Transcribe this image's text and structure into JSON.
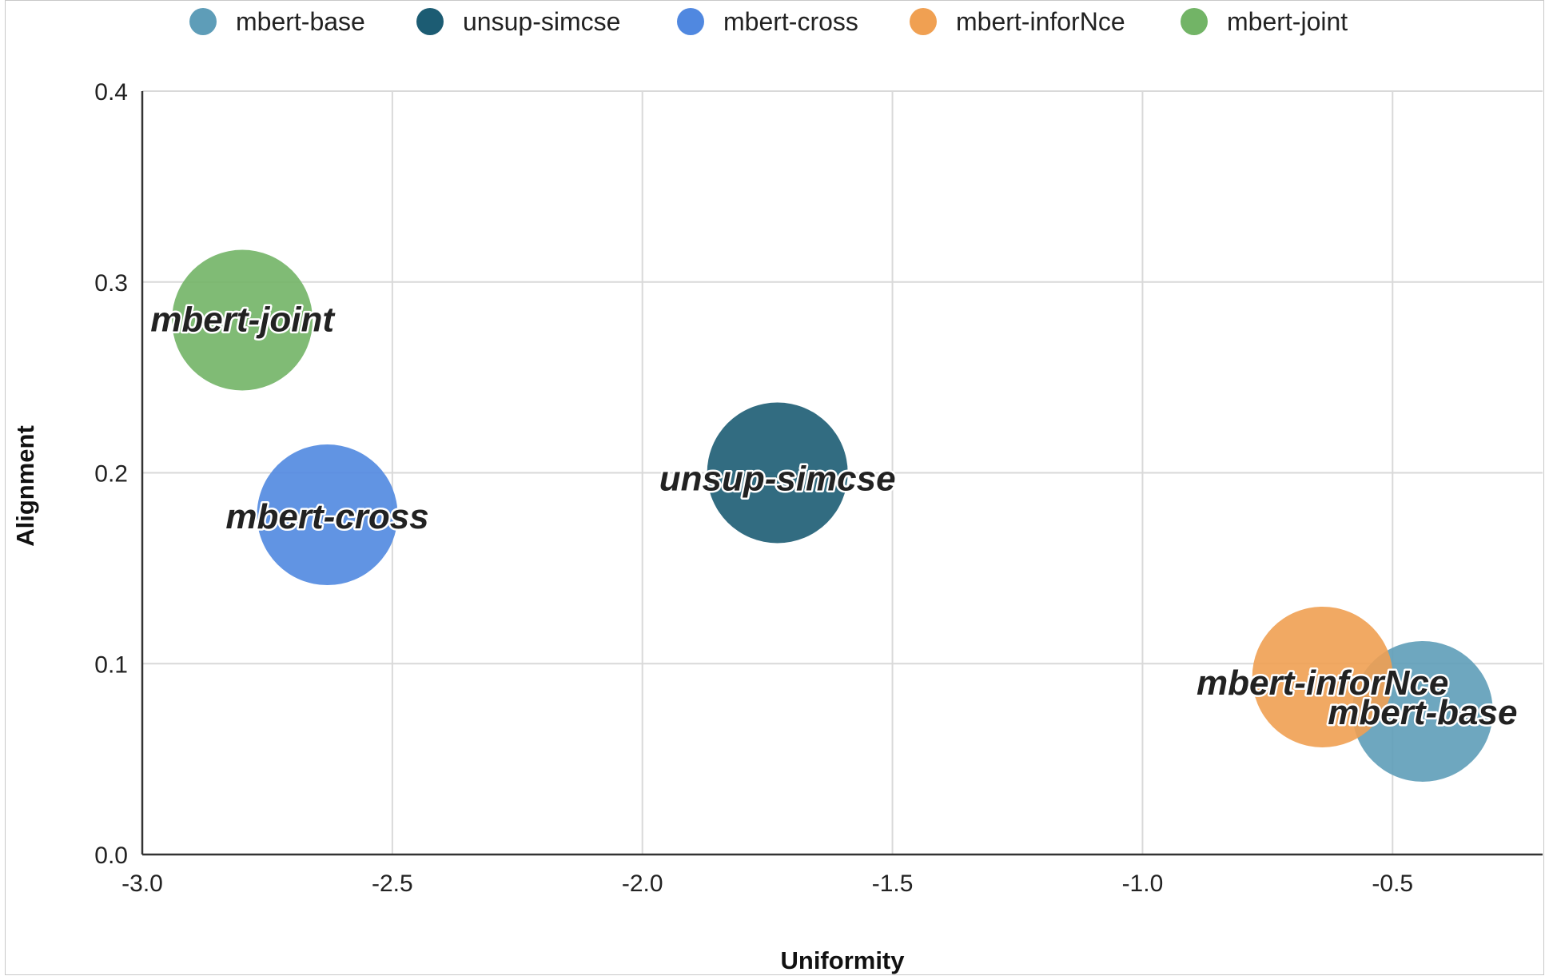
{
  "chart_data": {
    "type": "scatter",
    "xlabel": "Uniformity",
    "ylabel": "Alignment",
    "xlim": [
      -3.0,
      -0.2
    ],
    "ylim": [
      0.0,
      0.4
    ],
    "x_ticks": [
      -3.0,
      -2.5,
      -2.0,
      -1.5,
      -1.0,
      -0.5
    ],
    "x_tick_labels": [
      "-3.0",
      "-2.5",
      "-2.0",
      "-1.5",
      "-1.0",
      "-0.5"
    ],
    "y_ticks": [
      0.0,
      0.1,
      0.2,
      0.3,
      0.4
    ],
    "y_tick_labels": [
      "0.0",
      "0.1",
      "0.2",
      "0.3",
      "0.4"
    ],
    "grid": true,
    "legend_position": "top",
    "series": [
      {
        "name": "mbert-base",
        "color": "#5e9db8",
        "x": -0.44,
        "y": 0.075
      },
      {
        "name": "unsup-simcse",
        "color": "#1c5c73",
        "x": -1.73,
        "y": 0.2
      },
      {
        "name": "mbert-cross",
        "color": "#5088e0",
        "x": -2.63,
        "y": 0.178
      },
      {
        "name": "mbert-inforNce",
        "color": "#f0a052",
        "x": -0.64,
        "y": 0.093
      },
      {
        "name": "mbert-joint",
        "color": "#72b466",
        "x": -2.8,
        "y": 0.28
      }
    ],
    "draw_order": [
      4,
      2,
      1,
      0,
      3
    ],
    "label_order": [
      4,
      2,
      1,
      3,
      0
    ]
  }
}
